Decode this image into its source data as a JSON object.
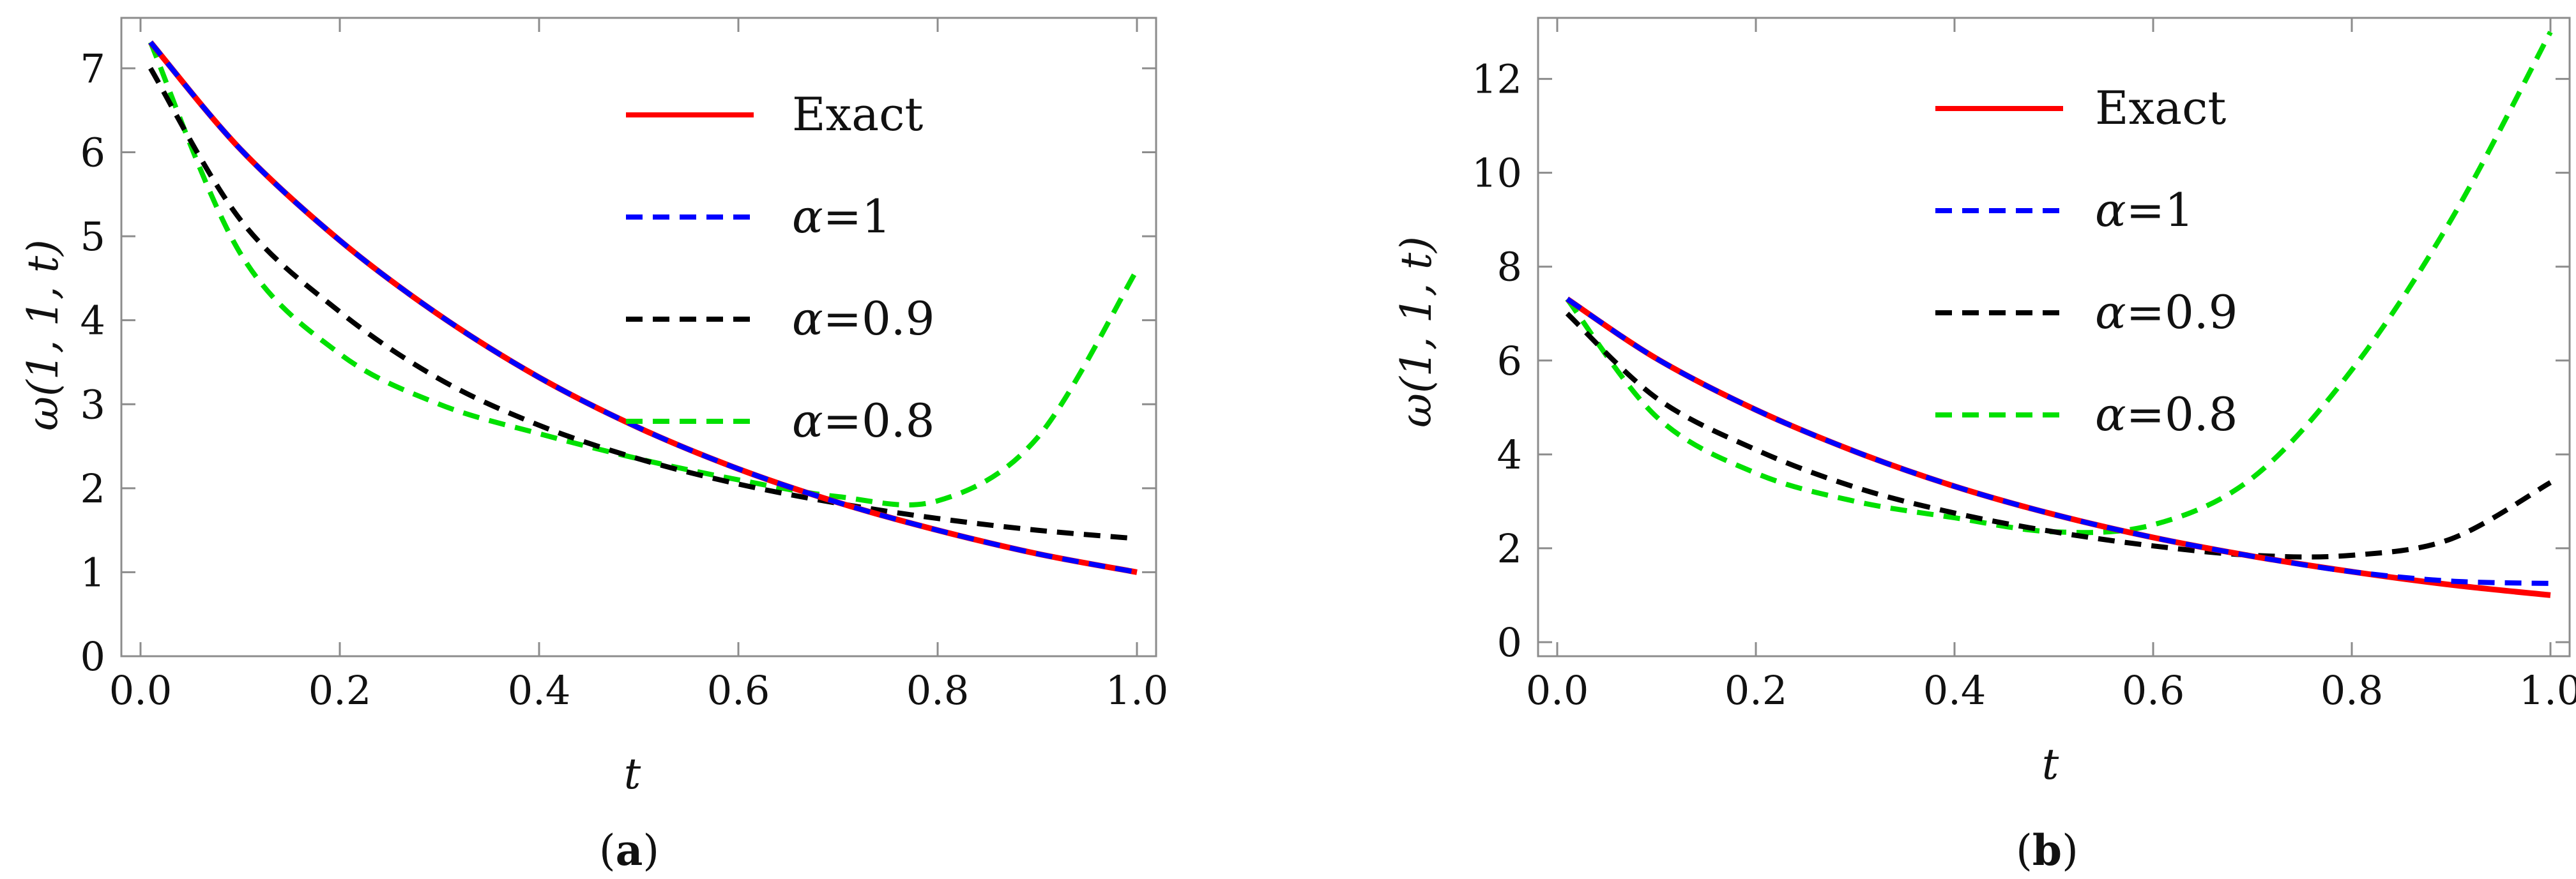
{
  "colors": {
    "exact": "#ff0000",
    "alpha1": "#0000ff",
    "alpha09": "#000000",
    "alpha08": "#00e000"
  },
  "chart_data": [
    {
      "type": "line",
      "panel_label": "(a)",
      "panel_label_parts": {
        "open": "(",
        "letter": "a",
        "close": ")"
      },
      "xlabel": "t",
      "ylabel": "ω(1, 1, t)",
      "xlim": [
        0,
        1
      ],
      "ylim": [
        0,
        7.6
      ],
      "xticks": [
        "0.0",
        "0.2",
        "0.4",
        "0.6",
        "0.8",
        "1.0"
      ],
      "yticks": [
        "0",
        "1",
        "2",
        "3",
        "4",
        "5",
        "6",
        "7"
      ],
      "legend_position": "top-right",
      "x": [
        0.01,
        0.1,
        0.2,
        0.3,
        0.4,
        0.5,
        0.6,
        0.7,
        0.8,
        0.9,
        1.0
      ],
      "series": [
        {
          "name": "Exact",
          "label_prefix": "",
          "label_value": "Exact",
          "style": "solid",
          "color_key": "exact",
          "values": [
            7.31,
            6.04,
            4.95,
            4.06,
            3.32,
            2.72,
            2.23,
            1.83,
            1.5,
            1.22,
            1.0
          ]
        },
        {
          "name": "α=1",
          "label_prefix": "α",
          "label_value": "=1",
          "style": "dashed",
          "color_key": "alpha1",
          "values": [
            7.31,
            6.04,
            4.95,
            4.06,
            3.32,
            2.72,
            2.23,
            1.83,
            1.5,
            1.22,
            1.0
          ]
        },
        {
          "name": "α=0.9",
          "label_prefix": "α",
          "label_value": "=0.9",
          "style": "dashed",
          "color_key": "alpha09",
          "values": [
            7.0,
            5.2,
            4.1,
            3.3,
            2.75,
            2.35,
            2.05,
            1.82,
            1.64,
            1.5,
            1.4
          ]
        },
        {
          "name": "α=0.8",
          "label_prefix": "α",
          "label_value": "=0.8",
          "style": "dashed",
          "color_key": "alpha08",
          "values": [
            7.31,
            4.8,
            3.6,
            3.0,
            2.65,
            2.35,
            2.1,
            1.9,
            1.85,
            2.6,
            4.6
          ]
        }
      ]
    },
    {
      "type": "line",
      "panel_label": "(b)",
      "panel_label_parts": {
        "open": "(",
        "letter": "b",
        "close": ")"
      },
      "xlabel": "t",
      "ylabel": "ω(1, 1, t)",
      "xlim": [
        0,
        1
      ],
      "ylim": [
        -0.3,
        13.3
      ],
      "xticks": [
        "0.0",
        "0.2",
        "0.4",
        "0.6",
        "0.8",
        "1.0"
      ],
      "yticks": [
        "0",
        "2",
        "4",
        "6",
        "8",
        "10",
        "12"
      ],
      "legend_position": "top-right",
      "x": [
        0.01,
        0.1,
        0.2,
        0.3,
        0.4,
        0.5,
        0.6,
        0.7,
        0.8,
        0.9,
        1.0
      ],
      "series": [
        {
          "name": "Exact",
          "label_prefix": "",
          "label_value": "Exact",
          "style": "solid",
          "color_key": "exact",
          "values": [
            7.31,
            6.04,
            4.95,
            4.06,
            3.32,
            2.72,
            2.23,
            1.83,
            1.5,
            1.22,
            1.0
          ]
        },
        {
          "name": "α=1",
          "label_prefix": "α",
          "label_value": "=1",
          "style": "dashed",
          "color_key": "alpha1",
          "values": [
            7.31,
            6.04,
            4.95,
            4.06,
            3.32,
            2.72,
            2.23,
            1.83,
            1.5,
            1.3,
            1.25
          ]
        },
        {
          "name": "α=0.9",
          "label_prefix": "α",
          "label_value": "=0.9",
          "style": "dashed",
          "color_key": "alpha09",
          "values": [
            7.0,
            5.2,
            4.1,
            3.3,
            2.75,
            2.35,
            2.05,
            1.85,
            1.85,
            2.2,
            3.4
          ]
        },
        {
          "name": "α=0.8",
          "label_prefix": "α",
          "label_value": "=0.8",
          "style": "dashed",
          "color_key": "alpha08",
          "values": [
            7.31,
            4.8,
            3.6,
            3.0,
            2.65,
            2.35,
            2.5,
            3.5,
            5.8,
            9.0,
            13.0
          ]
        }
      ]
    }
  ]
}
